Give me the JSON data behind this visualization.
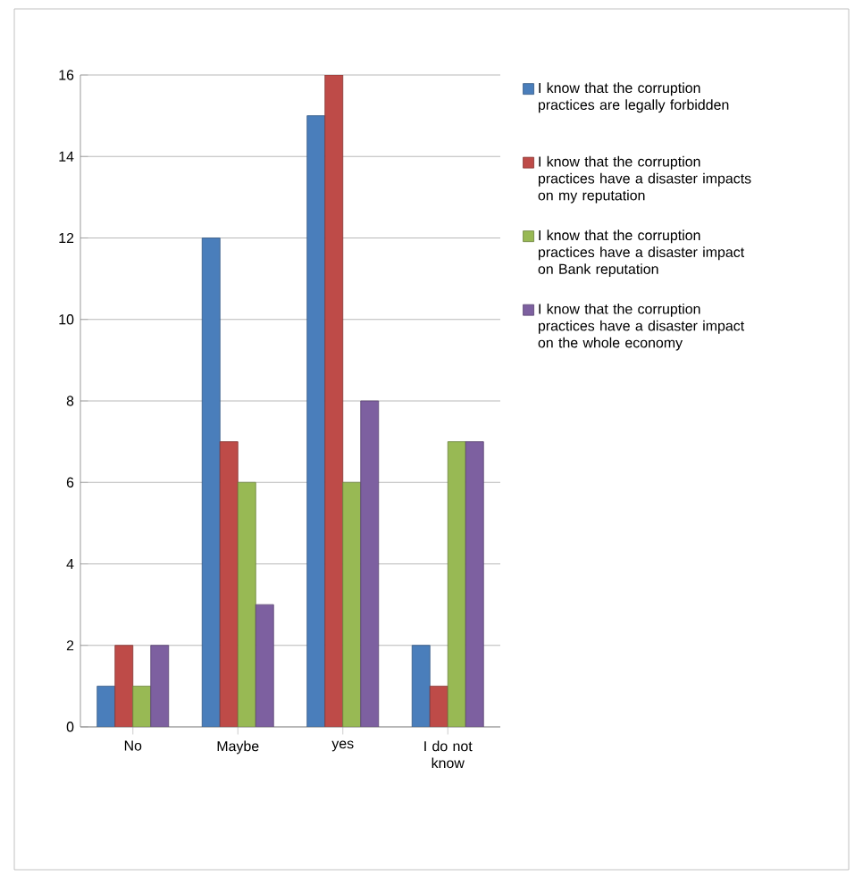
{
  "chart_data": {
    "type": "bar",
    "categories": [
      "No",
      "Maybe",
      "yes",
      "I do not know"
    ],
    "series": [
      {
        "name": "I know that the corruption practices are legally forbidden",
        "color": "#4a7ebb",
        "values": [
          1,
          12,
          15,
          2
        ]
      },
      {
        "name": "I know that the corruption practices have a disaster impacts on my reputation",
        "color": "#be4b48",
        "values": [
          2,
          7,
          16,
          1
        ]
      },
      {
        "name": "I know that the corruption practices have a disaster impact on Bank reputation",
        "color": "#98b954",
        "values": [
          1,
          6,
          6,
          7
        ]
      },
      {
        "name": "I know that the corruption practices have a disaster impact on the whole economy",
        "color": "#7d60a0",
        "values": [
          2,
          3,
          8,
          7
        ]
      }
    ],
    "ylim": [
      0,
      16
    ],
    "yticks": [
      0,
      2,
      4,
      6,
      8,
      10,
      12,
      14,
      16
    ],
    "grid": "y",
    "legend": "right"
  }
}
